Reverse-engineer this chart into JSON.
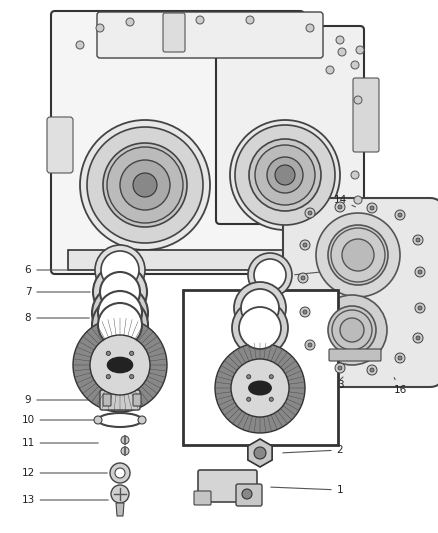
{
  "bg": "#ffffff",
  "fw": 4.38,
  "fh": 5.33,
  "dpi": 100,
  "lc": "#444444",
  "lc2": "#222222",
  "gc": "#bbbbbb",
  "gc2": "#888888",
  "hc": "#666666"
}
